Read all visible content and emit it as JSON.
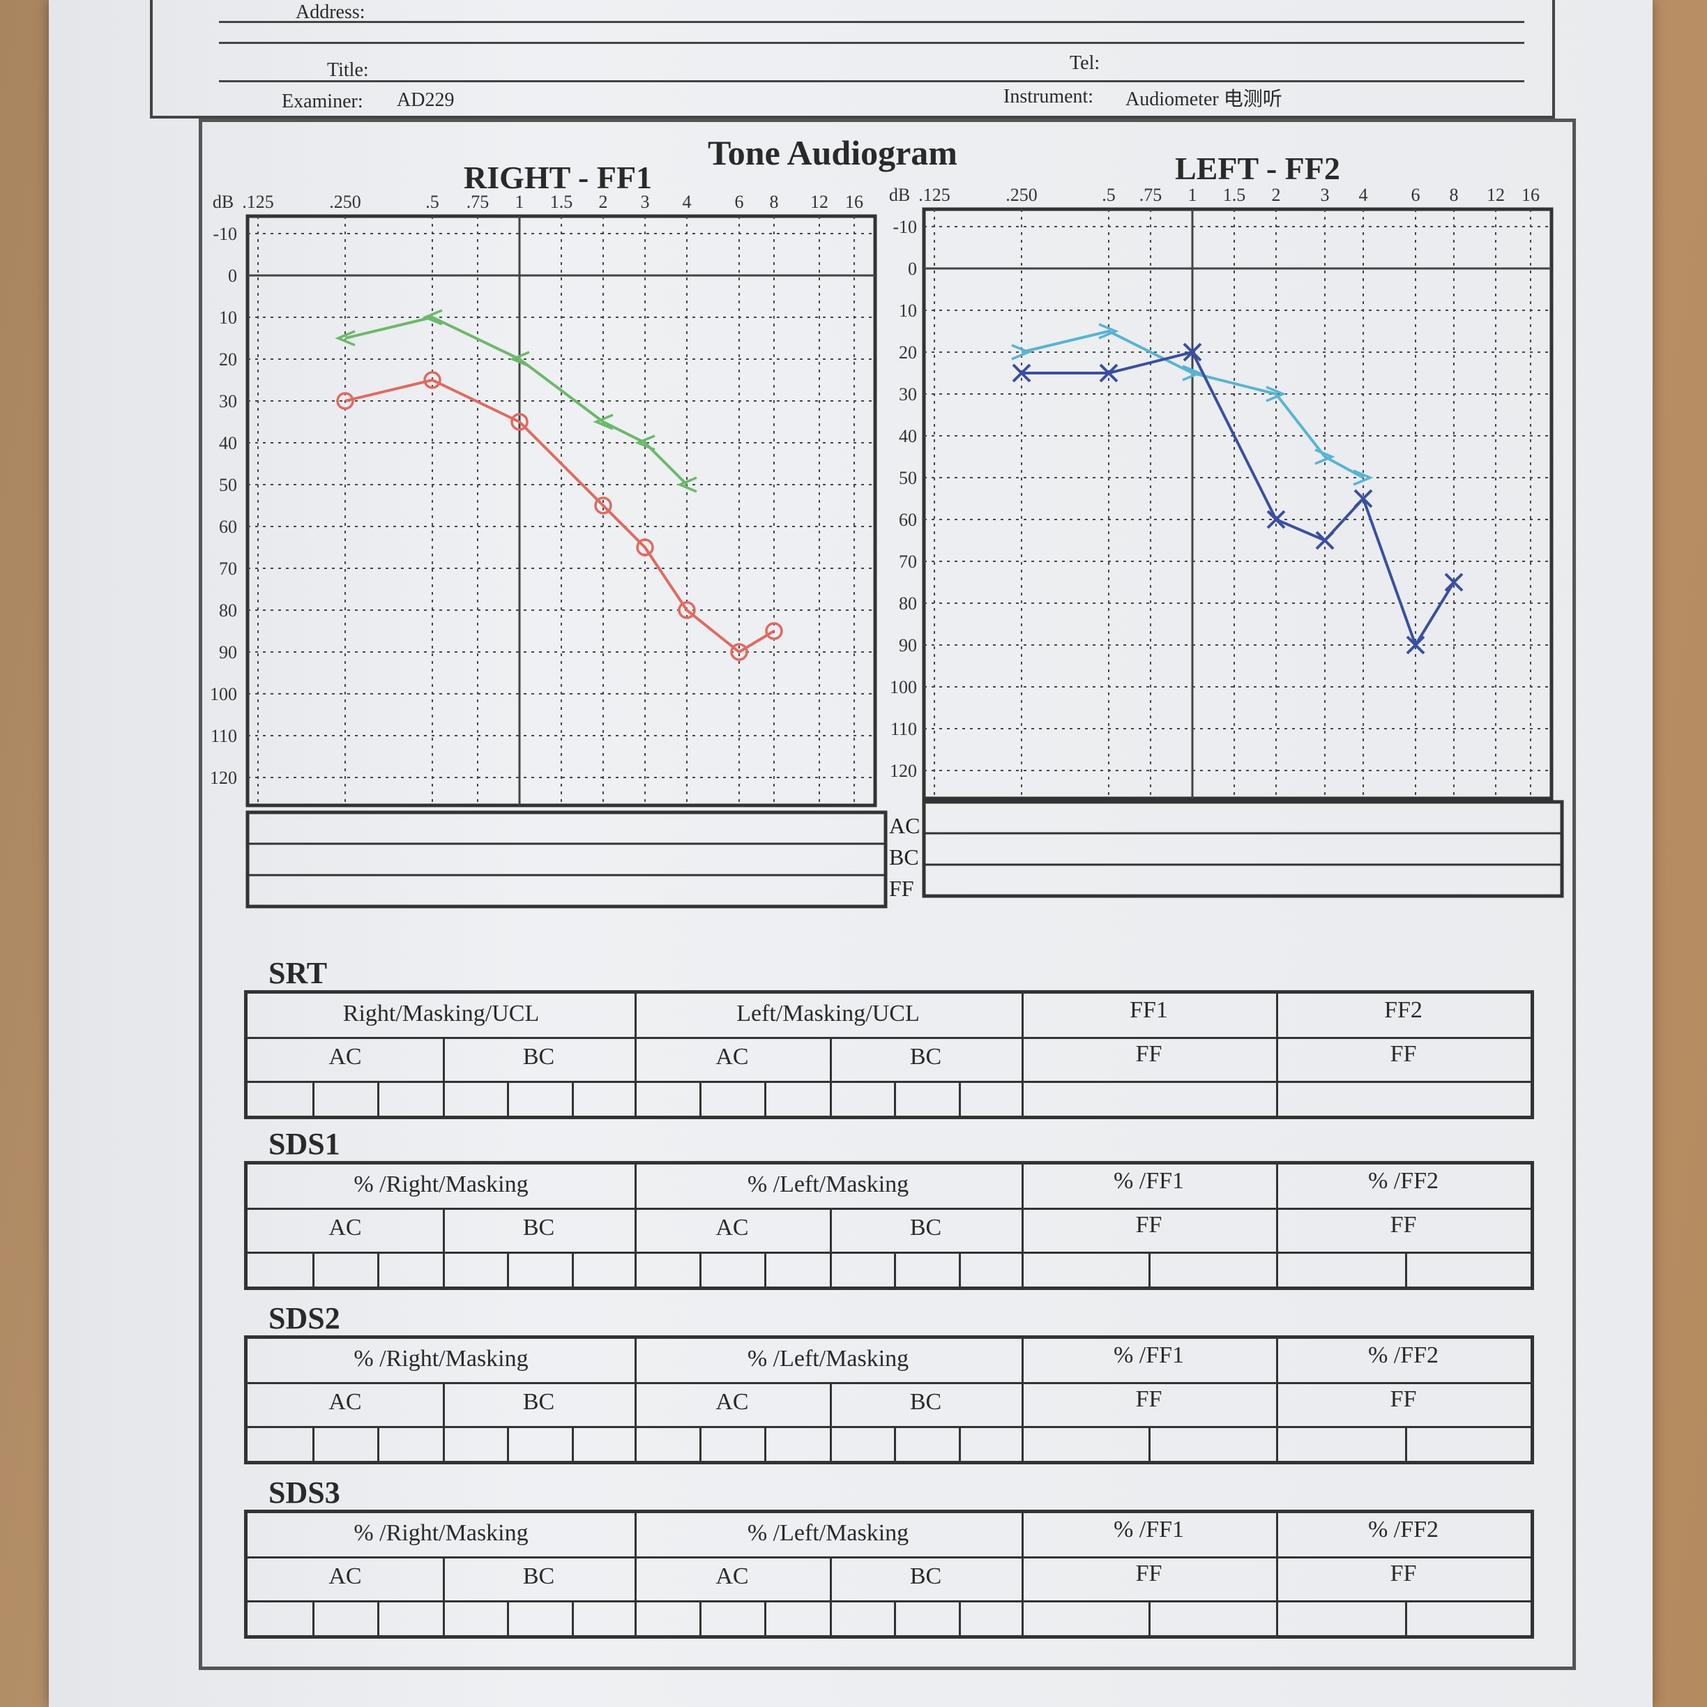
{
  "header": {
    "address_label": "Address:",
    "title_label": "Title:",
    "tel_label": "Tel:",
    "examiner_label": "Examiner:",
    "examiner_value": "AD229",
    "instrument_label": "Instrument:",
    "instrument_value": "Audiometer 电测听"
  },
  "page_title": "Tone Audiogram",
  "chart_data": [
    {
      "type": "line",
      "title": "RIGHT - FF1",
      "ylabel": "dB",
      "x_tick_labels": [
        ".125",
        ".250",
        ".5",
        ".75",
        "1",
        "1.5",
        "2",
        "3",
        "4",
        "6",
        "8",
        "12",
        "16"
      ],
      "y_tick_labels": [
        "-10",
        "0",
        "10",
        "20",
        "30",
        "40",
        "50",
        "60",
        "70",
        "80",
        "90",
        "100",
        "110",
        "120"
      ],
      "ylim": [
        -10,
        120
      ],
      "y_inverted": true,
      "grid": true,
      "series": [
        {
          "marker": "<",
          "color": "#6db86a",
          "x": [
            ".250",
            ".5",
            "1",
            "2",
            "3",
            "4"
          ],
          "values": [
            15,
            10,
            20,
            35,
            40,
            50
          ]
        },
        {
          "marker": "o",
          "color": "#e06a60",
          "x": [
            ".250",
            ".5",
            "1",
            "2",
            "3",
            "4",
            "6",
            "8"
          ],
          "values": [
            30,
            25,
            35,
            55,
            65,
            80,
            90,
            85
          ]
        }
      ]
    },
    {
      "type": "line",
      "title": "LEFT - FF2",
      "ylabel": "dB",
      "x_tick_labels": [
        ".125",
        ".250",
        ".5",
        ".75",
        "1",
        "1.5",
        "2",
        "3",
        "4",
        "6",
        "8",
        "12",
        "16"
      ],
      "y_tick_labels": [
        "-10",
        "0",
        "10",
        "20",
        "30",
        "40",
        "50",
        "60",
        "70",
        "80",
        "90",
        "100",
        "110",
        "120"
      ],
      "ylim": [
        -10,
        120
      ],
      "y_inverted": true,
      "grid": true,
      "series": [
        {
          "marker": ">",
          "color": "#58b4d2",
          "x": [
            ".250",
            ".5",
            "1",
            "2",
            "3",
            "4"
          ],
          "values": [
            20,
            15,
            25,
            30,
            45,
            50
          ]
        },
        {
          "marker": "x",
          "color": "#3a4fa0",
          "x": [
            ".250",
            ".5",
            "1",
            "2",
            "3",
            "4",
            "6",
            "8"
          ],
          "values": [
            25,
            25,
            20,
            60,
            65,
            55,
            90,
            75
          ]
        }
      ]
    }
  ],
  "conduction_rows": [
    "AC",
    "BC",
    "FF"
  ],
  "tables": [
    {
      "label": "SRT",
      "right": "Right/Masking/UCL",
      "left": "Left/Masking/UCL",
      "ff1": "FF1",
      "ff2": "FF2",
      "ac": "AC",
      "bc": "BC",
      "ff": "FF"
    },
    {
      "label": "SDS1",
      "right": "% /Right/Masking",
      "left": "% /Left/Masking",
      "ff1": "% /FF1",
      "ff2": "% /FF2",
      "ac": "AC",
      "bc": "BC",
      "ff": "FF"
    },
    {
      "label": "SDS2",
      "right": "% /Right/Masking",
      "left": "% /Left/Masking",
      "ff1": "% /FF1",
      "ff2": "% /FF2",
      "ac": "AC",
      "bc": "BC",
      "ff": "FF"
    },
    {
      "label": "SDS3",
      "right": "% /Right/Masking",
      "left": "% /Left/Masking",
      "ff1": "% /FF1",
      "ff2": "% /FF2",
      "ac": "AC",
      "bc": "BC",
      "ff": "FF"
    }
  ]
}
